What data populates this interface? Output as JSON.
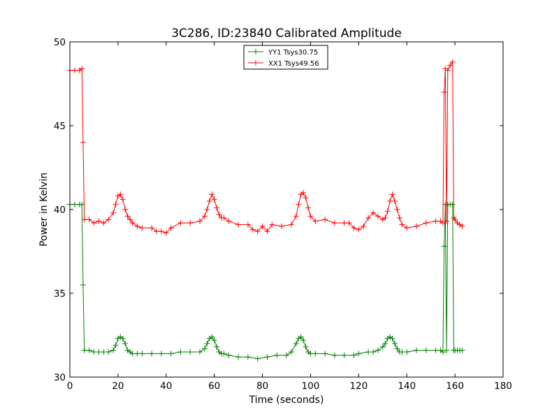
{
  "chart_data": {
    "type": "line",
    "title": "3C286, ID:23840 Calibrated Amplitude",
    "xlabel": "Time (seconds)",
    "ylabel": "Power in Kelvin",
    "xlim": [
      0,
      180
    ],
    "ylim": [
      30,
      50
    ],
    "xticks": [
      0,
      20,
      40,
      60,
      80,
      100,
      120,
      140,
      160,
      180
    ],
    "yticks": [
      30,
      35,
      40,
      45,
      50
    ],
    "legend_position": "top-center",
    "grid": false,
    "marker": "+",
    "series": [
      {
        "name": "YY1 Tsys30.75",
        "color": "#008000",
        "x": [
          0,
          2,
          4,
          5,
          5.5,
          6,
          8,
          10,
          12,
          14,
          16,
          18,
          19,
          20,
          21,
          22,
          23,
          24,
          25,
          26,
          28,
          30,
          34,
          38,
          42,
          46,
          50,
          54,
          56,
          57,
          58,
          59,
          60,
          61,
          62,
          63,
          64,
          66,
          70,
          74,
          78,
          82,
          86,
          90,
          92,
          94,
          95,
          96,
          97,
          98,
          99,
          100,
          102,
          106,
          110,
          114,
          118,
          120,
          124,
          126,
          128,
          130,
          131,
          132,
          133,
          134,
          135,
          136,
          137,
          138,
          140,
          144,
          148,
          152,
          154,
          155,
          155.5,
          156,
          156.5,
          157,
          158,
          159,
          159.5,
          160,
          161,
          162,
          163
        ],
        "y": [
          40.3,
          40.3,
          40.3,
          40.3,
          35.5,
          31.6,
          31.6,
          31.5,
          31.5,
          31.5,
          31.5,
          31.6,
          31.9,
          32.3,
          32.4,
          32.3,
          32.0,
          31.6,
          31.5,
          31.4,
          31.4,
          31.4,
          31.4,
          31.4,
          31.4,
          31.5,
          31.5,
          31.5,
          31.7,
          32.0,
          32.3,
          32.4,
          32.2,
          31.8,
          31.5,
          31.4,
          31.4,
          31.3,
          31.2,
          31.2,
          31.1,
          31.2,
          31.3,
          31.3,
          31.5,
          32.0,
          32.3,
          32.4,
          32.2,
          31.8,
          31.5,
          31.4,
          31.4,
          31.4,
          31.3,
          31.3,
          31.3,
          31.4,
          31.5,
          31.5,
          31.6,
          31.8,
          32.0,
          32.3,
          32.4,
          32.3,
          32.0,
          31.7,
          31.5,
          31.5,
          31.5,
          31.6,
          31.6,
          31.6,
          31.6,
          31.5,
          37.8,
          40.3,
          31.6,
          40.3,
          40.3,
          40.3,
          31.6,
          31.6,
          31.6,
          31.6,
          31.6
        ]
      },
      {
        "name": "XX1 Tsys49.56",
        "color": "#ff0000",
        "x": [
          0,
          2,
          4,
          5,
          5.5,
          6,
          8,
          10,
          12,
          14,
          16,
          18,
          19,
          20,
          21,
          22,
          23,
          24,
          25,
          26,
          28,
          30,
          34,
          36,
          38,
          40,
          42,
          46,
          50,
          54,
          56,
          57,
          58,
          59,
          60,
          61,
          62,
          63,
          64,
          66,
          70,
          74,
          76,
          78,
          80,
          82,
          84,
          88,
          92,
          94,
          95,
          96,
          97,
          98,
          99,
          100,
          102,
          106,
          110,
          114,
          116,
          118,
          120,
          122,
          124,
          126,
          128,
          130,
          131,
          132,
          133,
          134,
          135,
          136,
          137,
          138,
          140,
          144,
          148,
          152,
          154,
          155,
          155.5,
          156,
          156.5,
          157,
          158,
          159,
          159.5,
          160,
          161,
          162,
          163
        ],
        "y": [
          48.3,
          48.3,
          48.3,
          48.4,
          44.0,
          39.4,
          39.4,
          39.2,
          39.3,
          39.2,
          39.4,
          39.8,
          40.3,
          40.8,
          40.9,
          40.6,
          40.0,
          39.6,
          39.4,
          39.2,
          39.0,
          38.9,
          38.9,
          38.7,
          38.7,
          38.6,
          38.9,
          39.2,
          39.2,
          39.3,
          39.6,
          40.0,
          40.5,
          40.9,
          40.6,
          40.1,
          39.7,
          39.5,
          39.5,
          39.3,
          39.1,
          39.1,
          38.8,
          38.7,
          39.0,
          38.7,
          39.1,
          39.0,
          39.1,
          39.6,
          40.3,
          40.9,
          41.0,
          40.7,
          40.1,
          39.6,
          39.3,
          39.4,
          39.2,
          39.2,
          39.2,
          38.9,
          38.8,
          39.0,
          39.5,
          39.8,
          39.6,
          39.4,
          39.5,
          39.9,
          40.5,
          40.9,
          40.5,
          40.0,
          39.5,
          39.1,
          38.9,
          39.0,
          39.2,
          39.3,
          39.3,
          39.2,
          47.0,
          48.4,
          39.3,
          48.3,
          48.6,
          48.8,
          39.5,
          39.4,
          39.2,
          39.1,
          39.0
        ]
      }
    ]
  }
}
